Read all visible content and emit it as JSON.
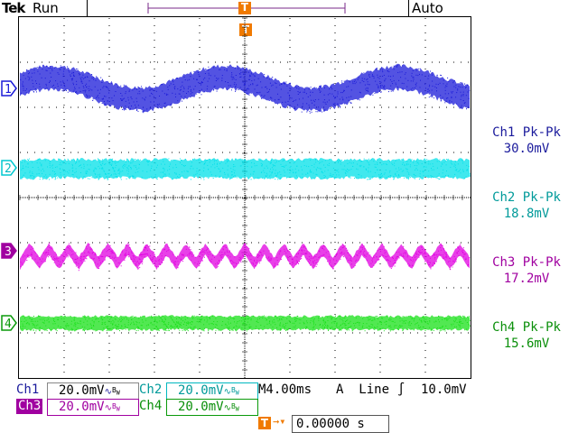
{
  "header": {
    "brand": "Tek",
    "status": "Run",
    "trigger_mode": "Auto",
    "trigger_marker": "T"
  },
  "channels": [
    {
      "marker": "1",
      "color": "#1a1ad8"
    },
    {
      "marker": "2",
      "color": "#00e0e8"
    },
    {
      "marker": "3",
      "color": "#e000e0"
    },
    {
      "marker": "4",
      "color": "#18e018"
    }
  ],
  "measurements": [
    {
      "label": "Ch1 Pk-Pk",
      "value": "30.0mV"
    },
    {
      "label": "Ch2 Pk-Pk",
      "value": "18.8mV"
    },
    {
      "label": "Ch3 Pk-Pk",
      "value": "17.2mV"
    },
    {
      "label": "Ch4 Pk-Pk",
      "value": "15.6mV"
    }
  ],
  "footer": {
    "ch1_label": "Ch1",
    "ch1_scale": "20.0mV",
    "ch2_label": "Ch2",
    "ch2_scale": "20.0mV",
    "ch3_label": "Ch3",
    "ch3_scale": "20.0mV",
    "ch4_label": "Ch4",
    "ch4_scale": "20.0mV",
    "bw_symbol": "B",
    "bw_sub": "W",
    "timebase": "M4.00ms",
    "trigger_source": "A  Line",
    "trigger_slope": "∫",
    "trigger_level": "10.0mV",
    "trigger_position_marker": "T",
    "trigger_position": "0.00000 s"
  }
}
